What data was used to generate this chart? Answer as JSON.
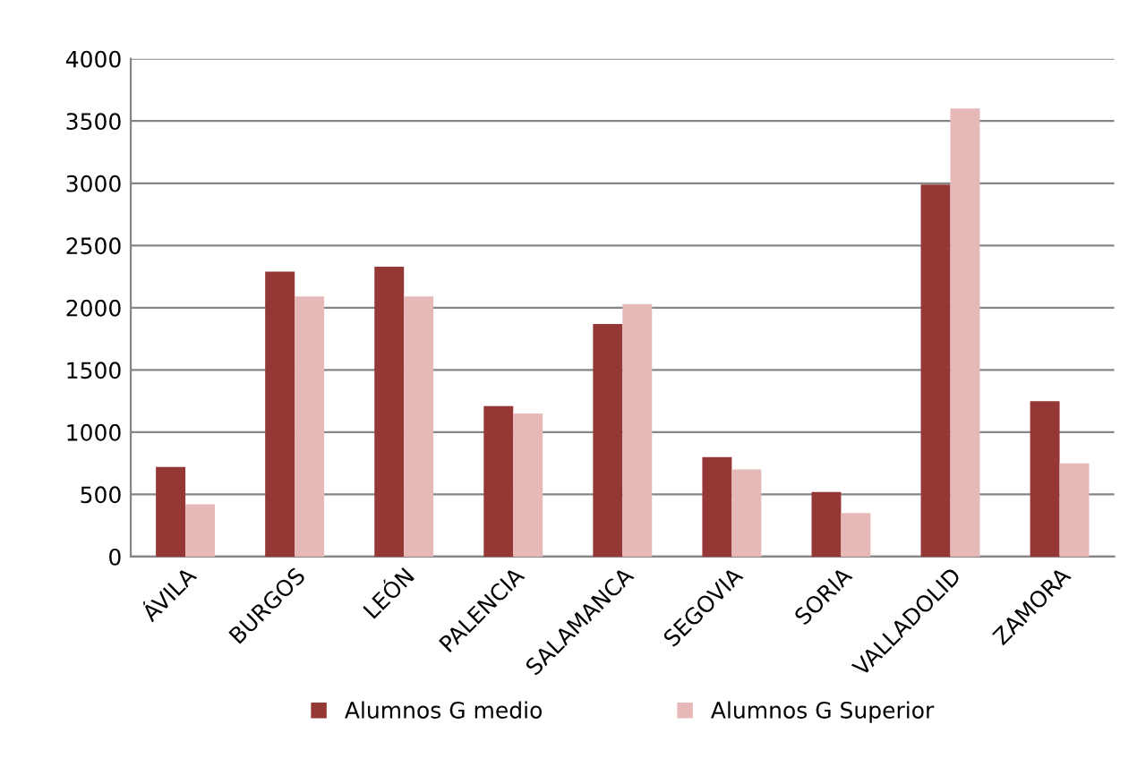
{
  "chart_data": {
    "type": "bar",
    "categories": [
      "ÁVILA",
      "BURGOS",
      "LEÓN",
      "PALENCIA",
      "SALAMANCA",
      "SEGOVIA",
      "SORIA",
      "VALLADOLID",
      "ZAMORA"
    ],
    "series": [
      {
        "name": "Alumnos G medio",
        "color": "#953735",
        "values": [
          720,
          2290,
          2330,
          1210,
          1870,
          800,
          520,
          2990,
          1250
        ]
      },
      {
        "name": "Alumnos G Superior",
        "color": "#e6b9b8",
        "values": [
          420,
          2090,
          2090,
          1150,
          2030,
          700,
          350,
          3600,
          750
        ]
      }
    ],
    "ylim": [
      0,
      4000
    ],
    "yticks": [
      0,
      500,
      1000,
      1500,
      2000,
      2500,
      3000,
      3500,
      4000
    ],
    "grid": "y",
    "legend": "bottom"
  }
}
